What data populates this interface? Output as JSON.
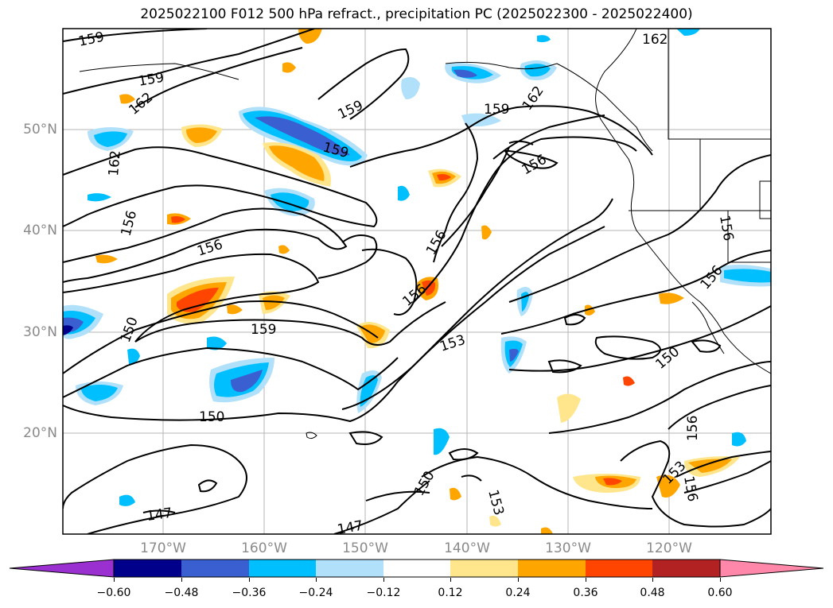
{
  "title": "2025022100 F012 500 hPa refract., precipitation PC (2025022300 - 2025022400)",
  "longitude_labels": [
    "170°W",
    "160°W",
    "150°W",
    "140°W",
    "130°W",
    "120°W"
  ],
  "latitude_labels": [
    "50°N",
    "40°N",
    "30°N",
    "20°N"
  ],
  "contour_labels": [
    "159",
    "159",
    "162",
    "159",
    "159",
    "159",
    "156",
    "162",
    "162",
    "156",
    "156",
    "156",
    "156",
    "150",
    "159",
    "153",
    "150",
    "150",
    "156",
    "153",
    "150",
    "153",
    "147",
    "147",
    "162",
    "156",
    "156",
    "156"
  ],
  "colorbar": {
    "ticks": [
      "−0.60",
      "−0.48",
      "−0.36",
      "−0.24",
      "−0.12",
      "0.12",
      "0.24",
      "0.36",
      "0.48",
      "0.60"
    ],
    "colors": [
      "#9b30d0",
      "#00008b",
      "#3a5fd0",
      "#00bfff",
      "#b0e0fa",
      "#ffffff",
      "#ffe68c",
      "#ffa500",
      "#ff4500",
      "#b22222",
      "#ff88aa"
    ]
  }
}
